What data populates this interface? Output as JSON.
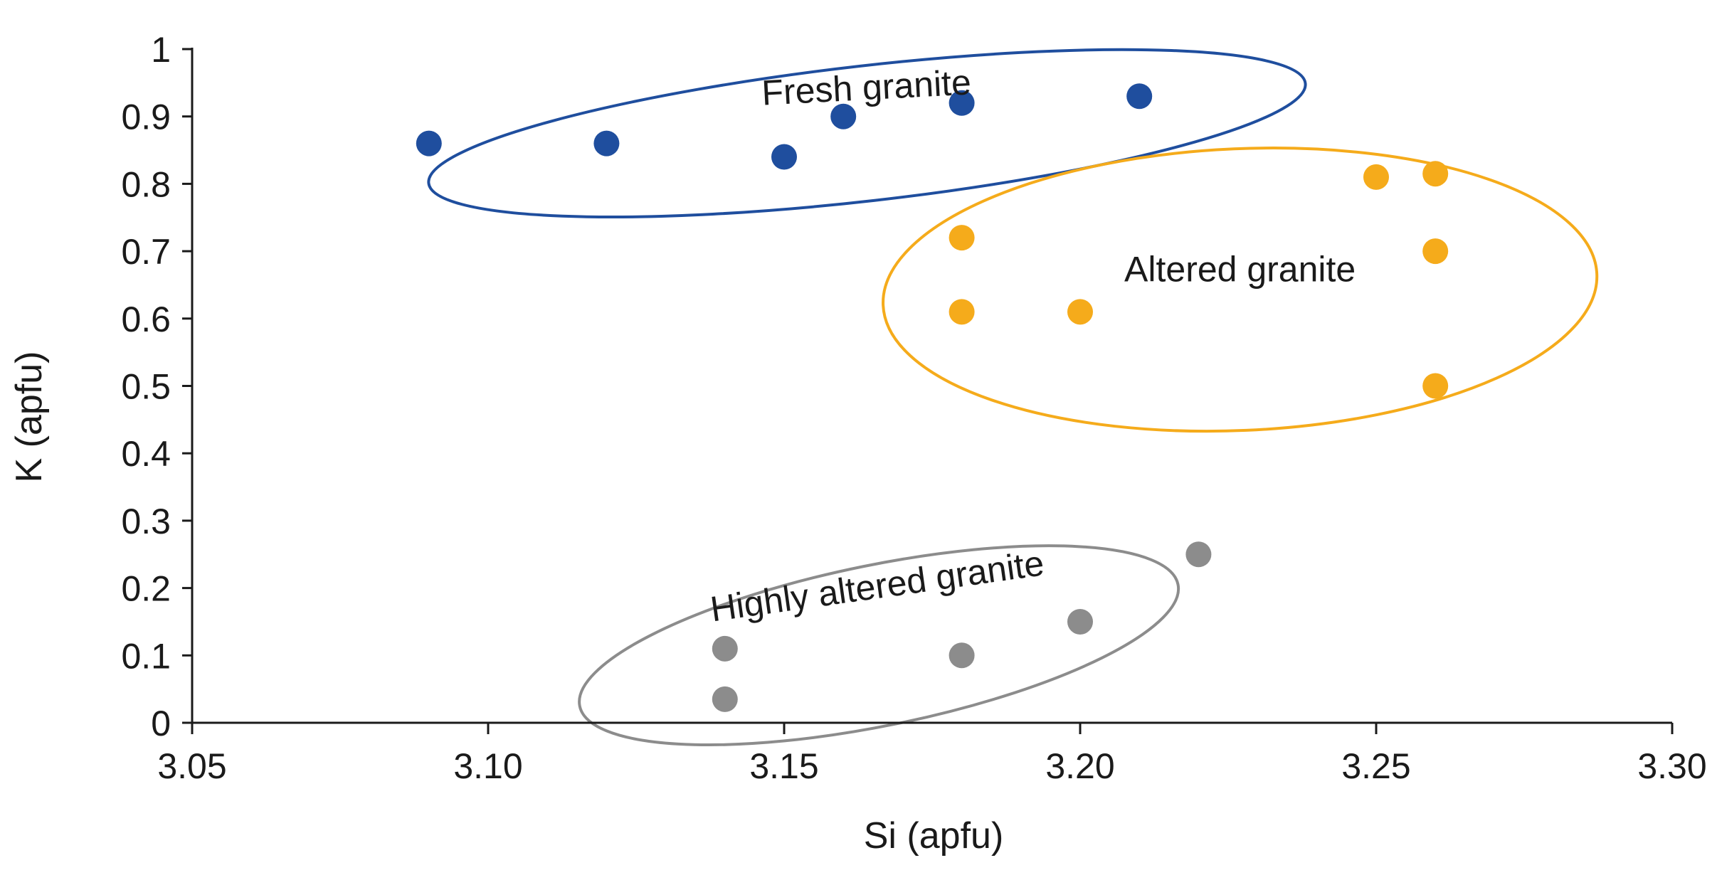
{
  "chart_data": {
    "type": "scatter",
    "title": "",
    "xlabel": "Si (apfu)",
    "ylabel": "K (apfu)",
    "xlim": [
      3.05,
      3.3
    ],
    "ylim": [
      0,
      1
    ],
    "x_ticks": [
      "3.05",
      "3.10",
      "3.15",
      "3.20",
      "3.25",
      "3.30"
    ],
    "y_ticks": [
      "0",
      "0.1",
      "0.2",
      "0.3",
      "0.4",
      "0.5",
      "0.6",
      "0.7",
      "0.8",
      "0.9",
      "1"
    ],
    "grid": false,
    "series": [
      {
        "name": "Fresh granite",
        "color": "#1f4e9e",
        "points": [
          {
            "x": 3.09,
            "y": 0.86
          },
          {
            "x": 3.12,
            "y": 0.86
          },
          {
            "x": 3.15,
            "y": 0.84
          },
          {
            "x": 3.16,
            "y": 0.9
          },
          {
            "x": 3.18,
            "y": 0.92
          },
          {
            "x": 3.21,
            "y": 0.93
          }
        ]
      },
      {
        "name": "Altered granite",
        "color": "#f5ab1b",
        "points": [
          {
            "x": 3.18,
            "y": 0.72
          },
          {
            "x": 3.18,
            "y": 0.61
          },
          {
            "x": 3.2,
            "y": 0.61
          },
          {
            "x": 3.25,
            "y": 0.81
          },
          {
            "x": 3.26,
            "y": 0.815
          },
          {
            "x": 3.26,
            "y": 0.7
          },
          {
            "x": 3.26,
            "y": 0.5
          }
        ]
      },
      {
        "name": "Highly altered granite",
        "color": "#8c8c8c",
        "points": [
          {
            "x": 3.14,
            "y": 0.11
          },
          {
            "x": 3.14,
            "y": 0.035
          },
          {
            "x": 3.18,
            "y": 0.1
          },
          {
            "x": 3.2,
            "y": 0.15
          },
          {
            "x": 3.22,
            "y": 0.25
          }
        ]
      }
    ]
  }
}
